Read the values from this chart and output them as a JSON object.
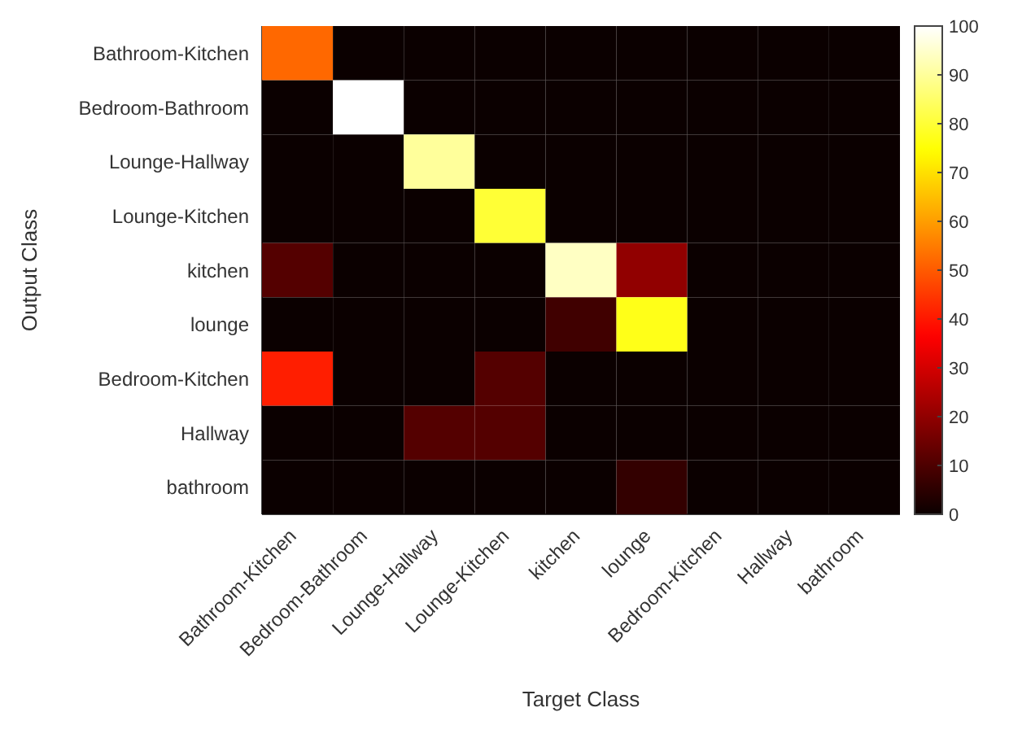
{
  "chart_data": {
    "type": "heatmap",
    "xlabel": "Target Class",
    "ylabel": "Output Class",
    "categories": [
      "Bathroom-Kitchen",
      "Bedroom-Bathroom",
      "Lounge-Hallway",
      "Lounge-Kitchen",
      "kitchen",
      "lounge",
      "Bedroom-Kitchen",
      "Hallway",
      "bathroom"
    ],
    "y_categories": [
      "Bathroom-Kitchen",
      "Bedroom-Bathroom",
      "Lounge-Hallway",
      "Lounge-Kitchen",
      "kitchen",
      "lounge",
      "Bedroom-Kitchen",
      "Hallway",
      "bathroom"
    ],
    "cells": [
      [
        52,
        0,
        0,
        0,
        0,
        0,
        0,
        0,
        0
      ],
      [
        0,
        100,
        0,
        0,
        0,
        0,
        0,
        0,
        0
      ],
      [
        0,
        0,
        90,
        0,
        0,
        0,
        0,
        0,
        0
      ],
      [
        0,
        0,
        0,
        80,
        0,
        0,
        0,
        0,
        0
      ],
      [
        11,
        0,
        0,
        0,
        94,
        20,
        0,
        0,
        0
      ],
      [
        0,
        0,
        0,
        0,
        8,
        77,
        0,
        0,
        0
      ],
      [
        41,
        0,
        0,
        11,
        0,
        0,
        0,
        0,
        0
      ],
      [
        0,
        0,
        11,
        11,
        0,
        0,
        0,
        0,
        0
      ],
      [
        0,
        0,
        0,
        0,
        0,
        6,
        0,
        0,
        0
      ]
    ],
    "clim": [
      0,
      100
    ],
    "cticks": [
      0,
      10,
      20,
      30,
      40,
      50,
      60,
      70,
      80,
      90,
      100
    ]
  }
}
